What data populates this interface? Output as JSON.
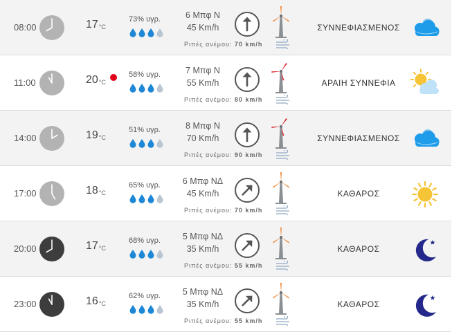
{
  "forecast": {
    "rows": [
      {
        "time": "08:00",
        "temp": "17",
        "unit": "°C",
        "alert": false,
        "humidity": "73% υγρ.",
        "drops_filled": 3,
        "wind_force": "6 Μπφ Ν",
        "wind_speed": "45 Km/h",
        "wind_dir_deg": 0,
        "gusts_label": "Ριπές ανέμου:",
        "gusts_value": "70 km/h",
        "condition": "ΣΥΝΝΕΦΙΑΣΜΕΝΟΣ",
        "icon": "cloudy-icon",
        "clock_style": "light",
        "turbine": "orange",
        "hour": 8
      },
      {
        "time": "11:00",
        "temp": "20",
        "unit": "°C",
        "alert": true,
        "humidity": "58% υγρ.",
        "drops_filled": 3,
        "wind_force": "7 Μπφ Ν",
        "wind_speed": "55 Km/h",
        "wind_dir_deg": 0,
        "gusts_label": "Ριπές ανέμου:",
        "gusts_value": "80 km/h",
        "condition": "ΑΡΑΙΗ ΣΥΝΝΕΦΙΑ",
        "icon": "partly-cloudy-icon",
        "clock_style": "light",
        "turbine": "red",
        "hour": 11
      },
      {
        "time": "14:00",
        "temp": "19",
        "unit": "°C",
        "alert": false,
        "humidity": "51% υγρ.",
        "drops_filled": 3,
        "wind_force": "8 Μπφ Ν",
        "wind_speed": "70 Km/h",
        "wind_dir_deg": 0,
        "gusts_label": "Ριπές ανέμου:",
        "gusts_value": "90 km/h",
        "condition": "ΣΥΝΝΕΦΙΑΣΜΕΝΟΣ",
        "icon": "cloudy-icon",
        "clock_style": "light",
        "turbine": "red",
        "hour": 14
      },
      {
        "time": "17:00",
        "temp": "18",
        "unit": "°C",
        "alert": false,
        "humidity": "65% υγρ.",
        "drops_filled": 3,
        "wind_force": "6 Μπφ ΝΔ",
        "wind_speed": "45 Km/h",
        "wind_dir_deg": 45,
        "gusts_label": "Ριπές ανέμου:",
        "gusts_value": "70 km/h",
        "condition": "ΚΑΘΑΡΟΣ",
        "icon": "sun-icon",
        "clock_style": "light",
        "turbine": "orange",
        "hour": 17
      },
      {
        "time": "20:00",
        "temp": "17",
        "unit": "°C",
        "alert": false,
        "humidity": "68% υγρ.",
        "drops_filled": 3,
        "wind_force": "5 Μπφ ΝΔ",
        "wind_speed": "35 Km/h",
        "wind_dir_deg": 45,
        "gusts_label": "Ριπές ανέμου:",
        "gusts_value": "55 km/h",
        "condition": "ΚΑΘΑΡΟΣ",
        "icon": "moon-icon",
        "clock_style": "dark",
        "turbine": "orange",
        "hour": 20
      },
      {
        "time": "23:00",
        "temp": "16",
        "unit": "°C",
        "alert": false,
        "humidity": "62% υγρ.",
        "drops_filled": 3,
        "wind_force": "5 Μπφ ΝΔ",
        "wind_speed": "35 Km/h",
        "wind_dir_deg": 45,
        "gusts_label": "Ριπές ανέμου:",
        "gusts_value": "55 km/h",
        "condition": "ΚΑΘΑΡΟΣ",
        "icon": "moon-icon",
        "clock_style": "dark",
        "turbine": "orange",
        "hour": 23
      }
    ]
  },
  "colors": {
    "drop_filled": "#1e88d6",
    "drop_empty": "#b9c6d2",
    "clock_light": "#b3b3b3",
    "clock_dark": "#3d3d3d",
    "alert": "#e3001b",
    "turbine_orange": "#ef8a3b",
    "turbine_red": "#d9262b",
    "cloud": "#1e9be9",
    "sun": "#f6c437",
    "moon": "#24288a"
  }
}
